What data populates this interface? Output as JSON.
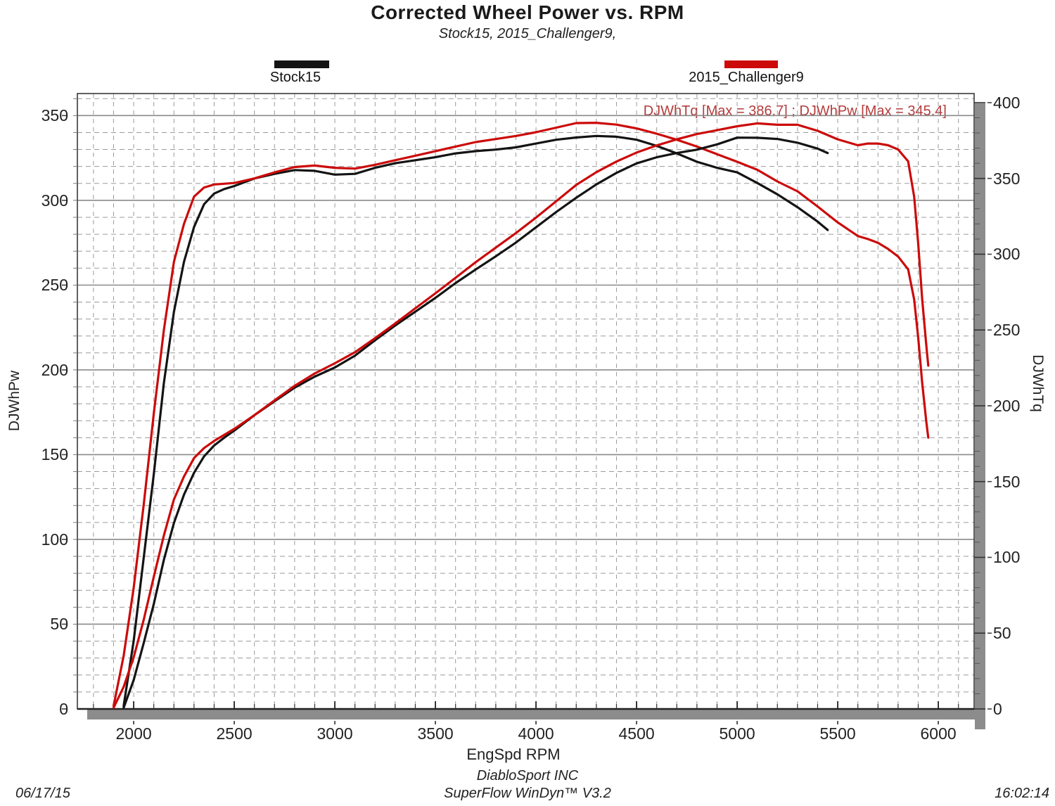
{
  "header": {
    "title": "Corrected Wheel Power vs. RPM",
    "subtitle": "Stock15, 2015_Challenger9,"
  },
  "legend": [
    {
      "label": "Stock15",
      "color": "#141414"
    },
    {
      "label": "2015_Challenger9",
      "color": "#cc0a0a"
    }
  ],
  "annotation": {
    "text": "DJWhTq [Max = 386.7] ; DJWhPw [Max = 345.4]",
    "color": "#b43c3c"
  },
  "footer": {
    "company": "DiabloSport INC",
    "software": "SuperFlow WinDyn™ V3.2",
    "date": "06/17/15",
    "time": "16:02:14"
  },
  "chart_data": {
    "type": "line",
    "title": "Corrected Wheel Power vs. RPM",
    "subtitle": "Stock15, 2015_Challenger9,",
    "xlabel": "EngSpd RPM",
    "ylabel_left": "DJWhPw",
    "ylabel_right": "DJWhTq",
    "x_range": [
      1720,
      6178
    ],
    "x_ticks": [
      2000,
      2500,
      3000,
      3500,
      4000,
      4500,
      5000,
      5500,
      6000
    ],
    "x_minor_step": 100,
    "left_range": [
      0,
      363
    ],
    "left_ticks": [
      0,
      50,
      100,
      150,
      200,
      250,
      300,
      350
    ],
    "left_minor_step": 10,
    "right_range": [
      0,
      406
    ],
    "right_ticks": [
      0,
      50,
      100,
      150,
      200,
      250,
      300,
      350,
      400
    ],
    "right_minor_step": 10,
    "grid": {
      "vertical": "dashed every 100 RPM",
      "horizontal": "dashed every 10, solid every 50 (left axis units)"
    },
    "legend_position": "top",
    "series": [
      {
        "name": "Stock15 DJWhTq",
        "run": "Stock15",
        "channel": "DJWhTq",
        "axis": "right",
        "color": "#141414",
        "points": [
          [
            1950,
            2
          ],
          [
            2000,
            45
          ],
          [
            2050,
            100
          ],
          [
            2100,
            155
          ],
          [
            2150,
            215
          ],
          [
            2200,
            262
          ],
          [
            2250,
            295
          ],
          [
            2300,
            318
          ],
          [
            2350,
            333
          ],
          [
            2400,
            340
          ],
          [
            2450,
            343
          ],
          [
            2500,
            345
          ],
          [
            2600,
            350
          ],
          [
            2700,
            353
          ],
          [
            2800,
            355.5
          ],
          [
            2900,
            355
          ],
          [
            3000,
            352.5
          ],
          [
            3100,
            353
          ],
          [
            3200,
            357
          ],
          [
            3300,
            360
          ],
          [
            3400,
            362
          ],
          [
            3500,
            364
          ],
          [
            3600,
            366.5
          ],
          [
            3700,
            368
          ],
          [
            3800,
            369
          ],
          [
            3900,
            370.5
          ],
          [
            4000,
            373
          ],
          [
            4100,
            375.5
          ],
          [
            4200,
            377
          ],
          [
            4300,
            378
          ],
          [
            4400,
            377.5
          ],
          [
            4500,
            375.5
          ],
          [
            4600,
            371.5
          ],
          [
            4700,
            366.5
          ],
          [
            4800,
            361
          ],
          [
            4900,
            357
          ],
          [
            5000,
            354
          ],
          [
            5100,
            347
          ],
          [
            5200,
            339.5
          ],
          [
            5300,
            331
          ],
          [
            5400,
            321.5
          ],
          [
            5450,
            316
          ]
        ]
      },
      {
        "name": "2015_Challenger9 DJWhTq",
        "run": "2015_Challenger9",
        "channel": "DJWhTq",
        "axis": "right",
        "color": "#cc0a0a",
        "points": [
          [
            1900,
            2
          ],
          [
            1950,
            35
          ],
          [
            2000,
            80
          ],
          [
            2050,
            135
          ],
          [
            2100,
            195
          ],
          [
            2150,
            250
          ],
          [
            2200,
            295
          ],
          [
            2250,
            320
          ],
          [
            2300,
            338
          ],
          [
            2350,
            344
          ],
          [
            2400,
            346
          ],
          [
            2500,
            347
          ],
          [
            2600,
            350
          ],
          [
            2700,
            354
          ],
          [
            2800,
            357.5
          ],
          [
            2900,
            358.5
          ],
          [
            3000,
            357
          ],
          [
            3100,
            356.5
          ],
          [
            3200,
            359
          ],
          [
            3300,
            362
          ],
          [
            3400,
            365
          ],
          [
            3500,
            368
          ],
          [
            3600,
            371
          ],
          [
            3700,
            374
          ],
          [
            3800,
            376
          ],
          [
            3900,
            378
          ],
          [
            4000,
            380.5
          ],
          [
            4100,
            383.5
          ],
          [
            4200,
            386.5
          ],
          [
            4300,
            386.7
          ],
          [
            4400,
            385.5
          ],
          [
            4500,
            383
          ],
          [
            4600,
            379.5
          ],
          [
            4700,
            375.5
          ],
          [
            4800,
            371
          ],
          [
            4900,
            366
          ],
          [
            5000,
            361
          ],
          [
            5100,
            355.7
          ],
          [
            5200,
            348
          ],
          [
            5300,
            341.5
          ],
          [
            5400,
            331.5
          ],
          [
            5500,
            321
          ],
          [
            5600,
            312
          ],
          [
            5650,
            310
          ],
          [
            5700,
            307.5
          ],
          [
            5750,
            303.5
          ],
          [
            5800,
            298.5
          ],
          [
            5850,
            290
          ],
          [
            5880,
            270
          ],
          [
            5900,
            245
          ],
          [
            5920,
            215
          ],
          [
            5940,
            190
          ],
          [
            5950,
            179
          ]
        ]
      },
      {
        "name": "Stock15 DJWhPw",
        "run": "Stock15",
        "channel": "DJWhPw",
        "axis": "left",
        "color": "#141414",
        "points": [
          [
            1950,
            0.7
          ],
          [
            2000,
            17.1
          ],
          [
            2050,
            39
          ],
          [
            2100,
            62
          ],
          [
            2150,
            88
          ],
          [
            2200,
            109.7
          ],
          [
            2250,
            126.4
          ],
          [
            2300,
            139.3
          ],
          [
            2350,
            149
          ],
          [
            2400,
            155.4
          ],
          [
            2450,
            160
          ],
          [
            2500,
            164.2
          ],
          [
            2600,
            173.3
          ],
          [
            2700,
            181.5
          ],
          [
            2800,
            189.5
          ],
          [
            2900,
            196
          ],
          [
            3000,
            201.4
          ],
          [
            3100,
            208.4
          ],
          [
            3200,
            217.5
          ],
          [
            3300,
            226.2
          ],
          [
            3400,
            234.3
          ],
          [
            3500,
            242.5
          ],
          [
            3600,
            251.2
          ],
          [
            3700,
            259.2
          ],
          [
            3800,
            267
          ],
          [
            3900,
            275.1
          ],
          [
            4000,
            284.1
          ],
          [
            4100,
            293.1
          ],
          [
            4200,
            301.5
          ],
          [
            4300,
            309.4
          ],
          [
            4400,
            316.2
          ],
          [
            4500,
            321.8
          ],
          [
            4600,
            325.4
          ],
          [
            4700,
            327.9
          ],
          [
            4800,
            329.9
          ],
          [
            4900,
            333
          ],
          [
            5000,
            337
          ],
          [
            5100,
            336.9
          ],
          [
            5200,
            336.2
          ],
          [
            5300,
            334
          ],
          [
            5400,
            330.5
          ],
          [
            5450,
            327.9
          ]
        ]
      },
      {
        "name": "2015_Challenger9 DJWhPw",
        "run": "2015_Challenger9",
        "channel": "DJWhPw",
        "axis": "left",
        "color": "#cc0a0a",
        "points": [
          [
            1900,
            0.7
          ],
          [
            1950,
            13
          ],
          [
            2000,
            30.5
          ],
          [
            2050,
            52.7
          ],
          [
            2100,
            78
          ],
          [
            2150,
            102.3
          ],
          [
            2200,
            123.6
          ],
          [
            2250,
            137.1
          ],
          [
            2300,
            148
          ],
          [
            2350,
            153.9
          ],
          [
            2400,
            158.1
          ],
          [
            2500,
            165.2
          ],
          [
            2600,
            173.3
          ],
          [
            2700,
            182
          ],
          [
            2800,
            190.6
          ],
          [
            2900,
            197.9
          ],
          [
            3000,
            203.9
          ],
          [
            3100,
            210.4
          ],
          [
            3200,
            218.7
          ],
          [
            3300,
            227.4
          ],
          [
            3400,
            236.3
          ],
          [
            3500,
            245.2
          ],
          [
            3600,
            254.3
          ],
          [
            3700,
            263.5
          ],
          [
            3800,
            272.1
          ],
          [
            3900,
            280.7
          ],
          [
            4000,
            289.8
          ],
          [
            4100,
            299.4
          ],
          [
            4200,
            309.1
          ],
          [
            4300,
            316.6
          ],
          [
            4400,
            322.9
          ],
          [
            4500,
            328.2
          ],
          [
            4600,
            332.4
          ],
          [
            4700,
            336
          ],
          [
            4800,
            339.1
          ],
          [
            4900,
            341.4
          ],
          [
            5000,
            343.7
          ],
          [
            5100,
            345.4
          ],
          [
            5200,
            344.6
          ],
          [
            5300,
            344.6
          ],
          [
            5400,
            341
          ],
          [
            5500,
            336
          ],
          [
            5600,
            332.5
          ],
          [
            5650,
            333.5
          ],
          [
            5700,
            333.5
          ],
          [
            5750,
            332.5
          ],
          [
            5800,
            330
          ],
          [
            5850,
            323
          ],
          [
            5880,
            302
          ],
          [
            5900,
            274.5
          ],
          [
            5920,
            241.5
          ],
          [
            5940,
            215
          ],
          [
            5950,
            202.5
          ]
        ]
      }
    ],
    "maxima": {
      "DJWhTq_max": 386.7,
      "DJWhPw_max": 345.4
    }
  },
  "style": {
    "grid_dash_color": "#9a9a9a",
    "grid_solid_color": "#8a8a8a",
    "spine_color": "#3a3a3a",
    "shadow_color": "#8c8c8c",
    "tick_color": "#333333"
  }
}
